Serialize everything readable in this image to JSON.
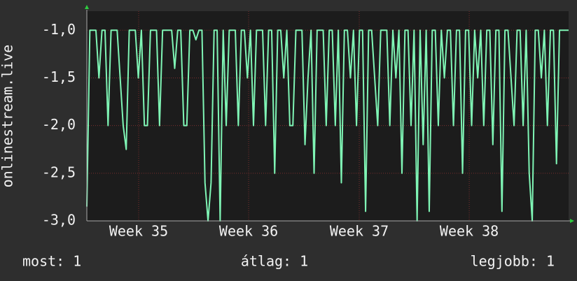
{
  "chart_data": {
    "type": "line",
    "ylabel": "onlinestream.live",
    "series": [
      {
        "color": "#7ff5b5",
        "values": [
          -2.85,
          -1,
          -1,
          -1,
          -1.5,
          -1,
          -1,
          -2,
          -1,
          -1,
          -1,
          -1.5,
          -2,
          -2.25,
          -1,
          -1,
          -1,
          -1.5,
          -1,
          -2,
          -2,
          -1,
          -1,
          -1,
          -2,
          -1,
          -1,
          -1,
          -1,
          -1.4,
          -1,
          -1,
          -2,
          -2,
          -1,
          -1,
          -1.1,
          -1,
          -1,
          -2.6,
          -3,
          -2.6,
          -1,
          -1,
          -3,
          -1,
          -2,
          -1,
          -1,
          -1,
          -2,
          -1,
          -1,
          -1.5,
          -1,
          -2,
          -1,
          -1,
          -1,
          -2,
          -1,
          -1,
          -2.5,
          -1,
          -1,
          -1.5,
          -1,
          -2,
          -2,
          -1,
          -1,
          -1,
          -2.2,
          -1.5,
          -1,
          -2.5,
          -1,
          -1,
          -1,
          -2,
          -1,
          -1,
          -2,
          -1,
          -2.6,
          -1,
          -1,
          -1.5,
          -1,
          -2,
          -1,
          -1,
          -2.9,
          -1,
          -1,
          -1.5,
          -2,
          -1,
          -1,
          -1,
          -2,
          -1,
          -1.5,
          -1,
          -2.5,
          -1,
          -1,
          -2,
          -1,
          -3,
          -1,
          -2.2,
          -1,
          -2.9,
          -1,
          -1,
          -2,
          -1,
          -1.5,
          -1,
          -1,
          -2,
          -1,
          -1,
          -2.5,
          -1,
          -1,
          -2,
          -1,
          -1.5,
          -1,
          -2,
          -1,
          -1,
          -2.2,
          -1,
          -1,
          -2.9,
          -1,
          -1,
          -1.5,
          -2,
          -1,
          -1,
          -2,
          -1,
          -2.5,
          -3,
          -1,
          -1,
          -1.5,
          -1,
          -2,
          -1,
          -1,
          -2.4,
          -1,
          -1,
          -1,
          -1
        ]
      }
    ],
    "xlim": [
      0,
      159
    ],
    "xticks": [
      {
        "value": 17.1,
        "label": "Week 35"
      },
      {
        "value": 53.4,
        "label": "Week 36"
      },
      {
        "value": 89.9,
        "label": "Week 37"
      },
      {
        "value": 126.2,
        "label": "Week 38"
      }
    ],
    "ylim": [
      -3,
      -0.8
    ],
    "yticks": [
      {
        "value": -3,
        "label": "-3,0"
      },
      {
        "value": -2.5,
        "label": "-2,5"
      },
      {
        "value": -2,
        "label": "-2,0"
      },
      {
        "value": -1.5,
        "label": "-1,5"
      },
      {
        "value": -1,
        "label": "-1,0"
      }
    ],
    "grid": true,
    "footer": [
      "most: 1",
      "átlag: 1",
      "legjobb: 1"
    ]
  }
}
